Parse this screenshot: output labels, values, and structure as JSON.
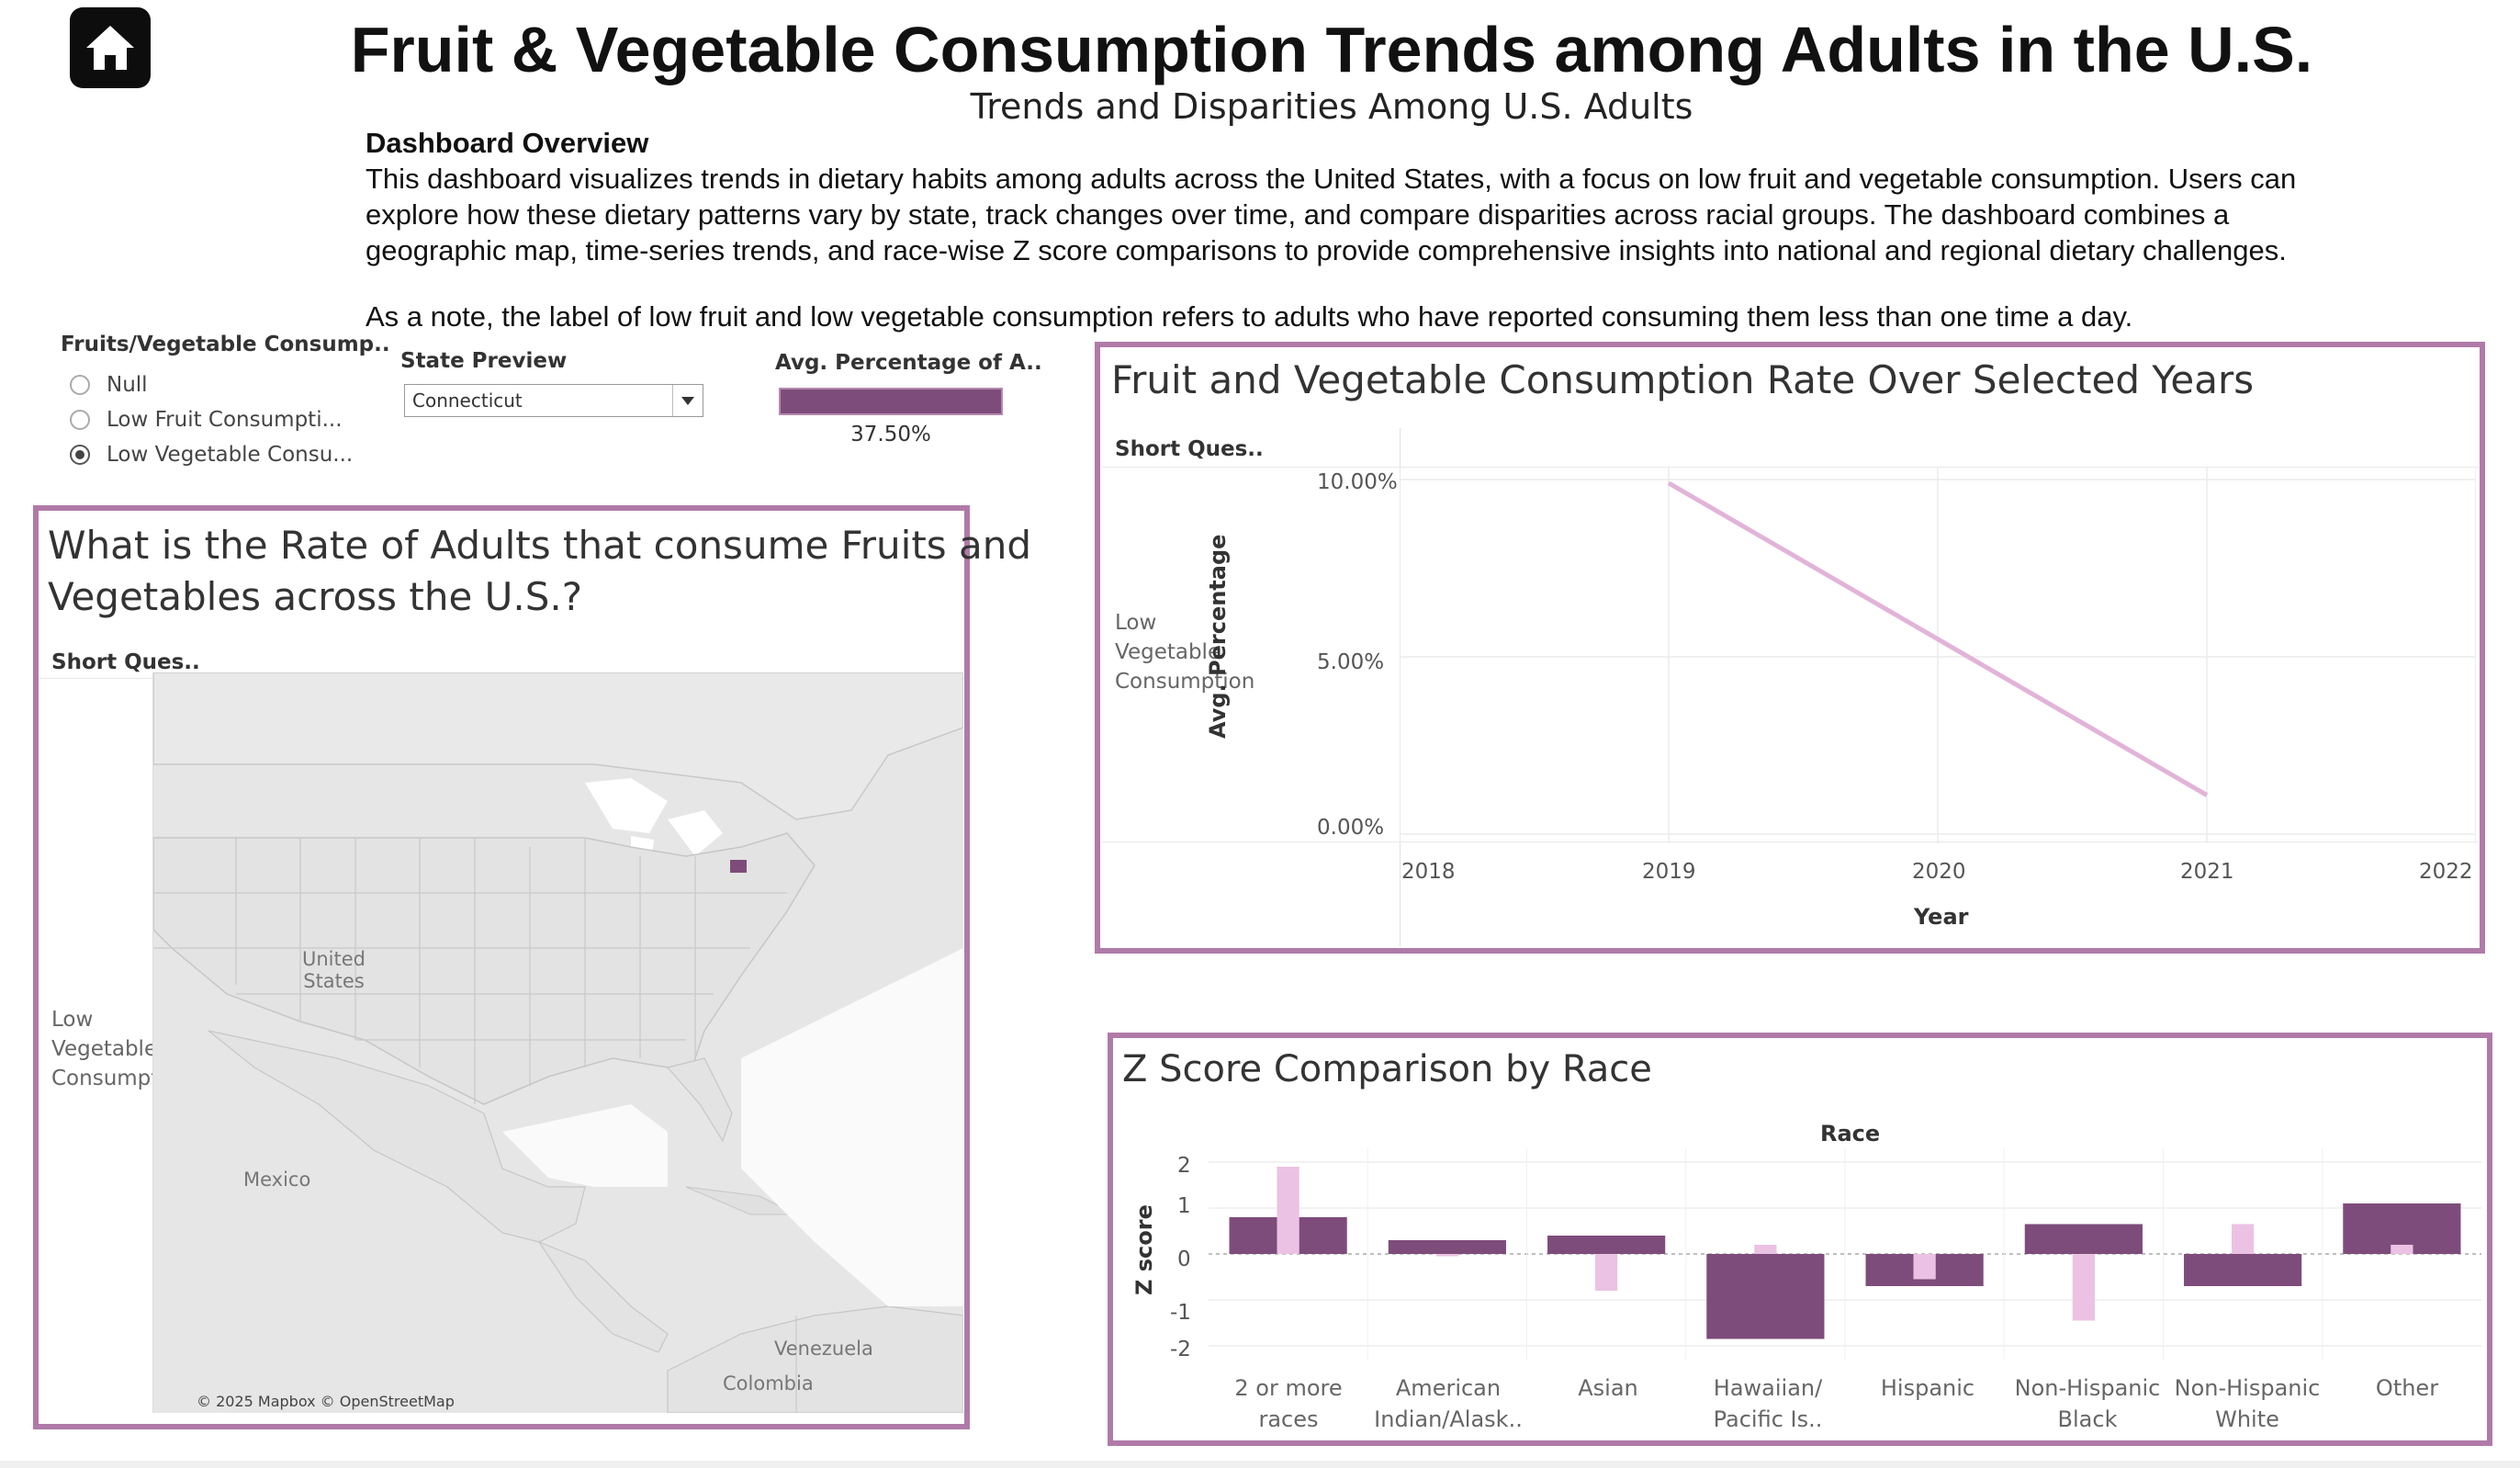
{
  "header": {
    "home_icon": "home-icon",
    "title": "Fruit & Vegetable Consumption Trends among Adults in the U.S.",
    "subtitle": "Trends and Disparities Among U.S. Adults"
  },
  "overview": {
    "heading": "Dashboard Overview",
    "body": "This dashboard visualizes trends in dietary habits among adults across the United States, with a focus on low fruit and vegetable consumption. Users can explore how these dietary patterns vary by state, track changes over time, and compare disparities across racial groups. The dashboard combines a geographic map, time-series trends, and race-wise Z score comparisons to provide comprehensive insights into national and regional dietary challenges.",
    "note": "As a note, the label of low fruit and low vegetable consumption refers to adults who have reported consuming them less than one time a day."
  },
  "filters": {
    "consumption": {
      "title": "Fruits/Vegetable Consump..",
      "options": [
        {
          "label": "Null",
          "checked": false
        },
        {
          "label": "Low Fruit Consumpti...",
          "checked": false
        },
        {
          "label": "Low Vegetable Consu...",
          "checked": true
        }
      ]
    },
    "state": {
      "title": "State Preview",
      "selected": "Connecticut"
    },
    "avg": {
      "title": "Avg. Percentage of A..",
      "value_label": "37.50%",
      "value": 37.5
    }
  },
  "map_panel": {
    "title_line1": "What is the Rate of Adults that consume Fruits and",
    "title_line2": "Vegetables across the U.S.?",
    "column_header": "Short Ques..",
    "row_label": [
      "Low",
      "Vegetable",
      "Consumption"
    ],
    "labels": {
      "us": [
        "United",
        "States"
      ],
      "mexico": "Mexico",
      "venezuela": "Venezuela",
      "colombia": "Colombia"
    },
    "credit": "© 2025 Mapbox © OpenStreetMap",
    "highlight_color": "#7e4c7a"
  },
  "line_panel": {
    "title": "Fruit and Vegetable Consumption Rate Over Selected Years",
    "column_header": "Short Ques..",
    "row_label": [
      "Low",
      "Vegetable",
      "Consumption"
    ],
    "chart_data": {
      "type": "line",
      "xlabel": "Year",
      "ylabel": "Avg. Percentage",
      "x_ticks": [
        "2018",
        "2019",
        "2020",
        "2021",
        "2022"
      ],
      "y_ticks": [
        "10.00%",
        "5.00%",
        "0.00%"
      ],
      "xlim": [
        2018,
        2022
      ],
      "ylim": [
        0,
        10
      ],
      "series": [
        {
          "x": [
            2019,
            2021
          ],
          "y": [
            9.9,
            1.1
          ],
          "color": "#e2b3d8"
        }
      ]
    }
  },
  "race_panel": {
    "title": "Z Score Comparison by Race",
    "column_title": "Race",
    "chart_data": {
      "type": "bar",
      "xlabel": "Race",
      "ylabel": "Z score",
      "ylim": [
        -2.3,
        2.3
      ],
      "y_ticks": [
        "2",
        "1",
        "0",
        "-1",
        "-2"
      ],
      "categories": [
        [
          "2 or more",
          "races"
        ],
        [
          "American",
          "Indian/Alask.."
        ],
        [
          "Asian",
          ""
        ],
        [
          "Hawaiian/",
          "Pacific Is.."
        ],
        [
          "Hispanic",
          ""
        ],
        [
          "Non-Hispanic",
          "Black"
        ],
        [
          "Non-Hispanic",
          "White"
        ],
        [
          "Other",
          ""
        ]
      ],
      "series": [
        {
          "values": [
            0.8,
            0.3,
            0.4,
            -1.85,
            -0.7,
            0.65,
            -0.7,
            1.1
          ],
          "color": "#7e4c7a"
        },
        {
          "values": [
            1.9,
            -0.05,
            -0.8,
            0.2,
            -0.55,
            -1.45,
            0.65,
            0.2
          ],
          "color": "#ebc2e3"
        }
      ]
    }
  }
}
